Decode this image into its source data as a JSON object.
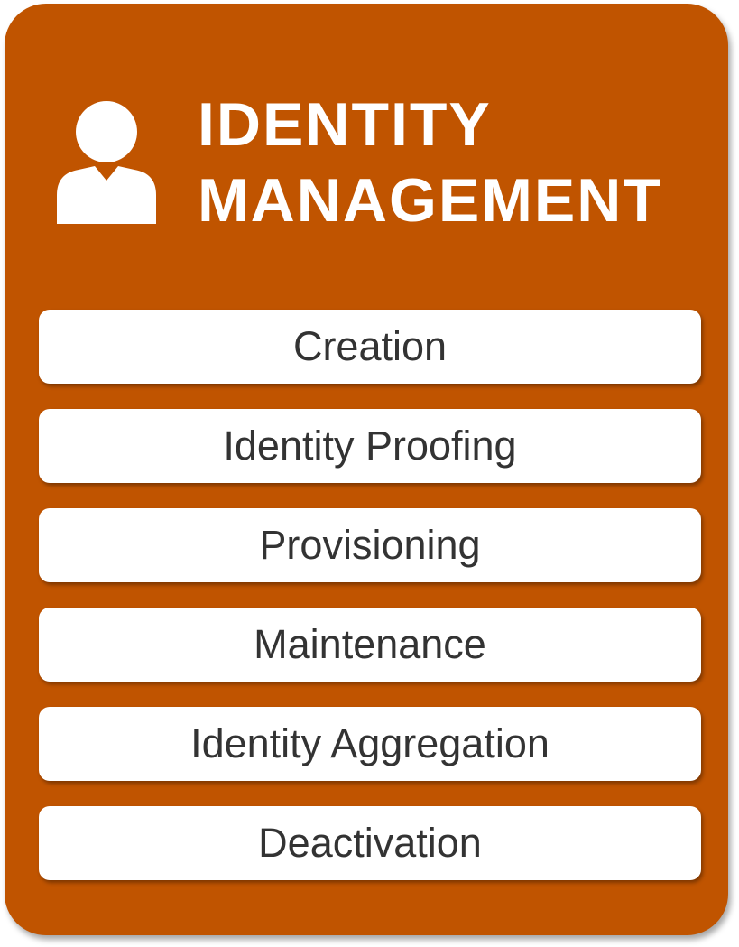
{
  "colors": {
    "card_background": "#c05400",
    "title_text": "#ffffff",
    "step_background": "#ffffff",
    "step_text": "#333333"
  },
  "header": {
    "icon": "person-icon",
    "title_line1": "IDENTITY",
    "title_line2": "MANAGEMENT"
  },
  "steps": [
    {
      "label": "Creation"
    },
    {
      "label": "Identity Proofing"
    },
    {
      "label": "Provisioning"
    },
    {
      "label": "Maintenance"
    },
    {
      "label": "Identity Aggregation"
    },
    {
      "label": "Deactivation"
    }
  ]
}
